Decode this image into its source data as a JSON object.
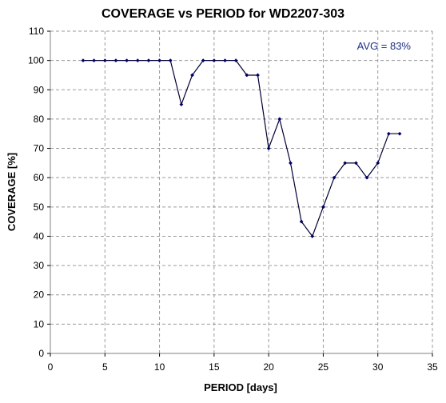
{
  "chart_data": {
    "type": "line",
    "title": "COVERAGE vs PERIOD for WD2207-303",
    "xlabel": "PERIOD [days]",
    "ylabel": "COVERAGE [%]",
    "xlim": [
      0,
      35
    ],
    "ylim": [
      0,
      110
    ],
    "xticks": [
      "0",
      "5",
      "10",
      "15",
      "20",
      "25",
      "30",
      "35"
    ],
    "yticks": [
      "0",
      "10",
      "20",
      "30",
      "40",
      "50",
      "60",
      "70",
      "80",
      "90",
      "100",
      "110"
    ],
    "grid": true,
    "legend": "none",
    "annotation": "AVG = 83%",
    "series": [
      {
        "x": [
          3,
          4,
          5,
          6,
          7,
          8,
          9,
          10,
          11,
          12,
          13,
          14,
          15,
          16,
          17,
          18,
          19,
          20,
          21,
          22,
          23,
          24,
          25,
          26,
          27,
          28,
          29,
          30,
          31,
          32
        ],
        "y": [
          100,
          100,
          100,
          100,
          100,
          100,
          100,
          100,
          100,
          85,
          95,
          100,
          100,
          100,
          100,
          95,
          95,
          70,
          80,
          65,
          45,
          40,
          50,
          60,
          65,
          65,
          60,
          65,
          75,
          75
        ]
      }
    ],
    "colors": {
      "line": "#000033",
      "marker": "#000066",
      "annotation": "#1f2f86",
      "grid": "#9a9a9a"
    }
  }
}
